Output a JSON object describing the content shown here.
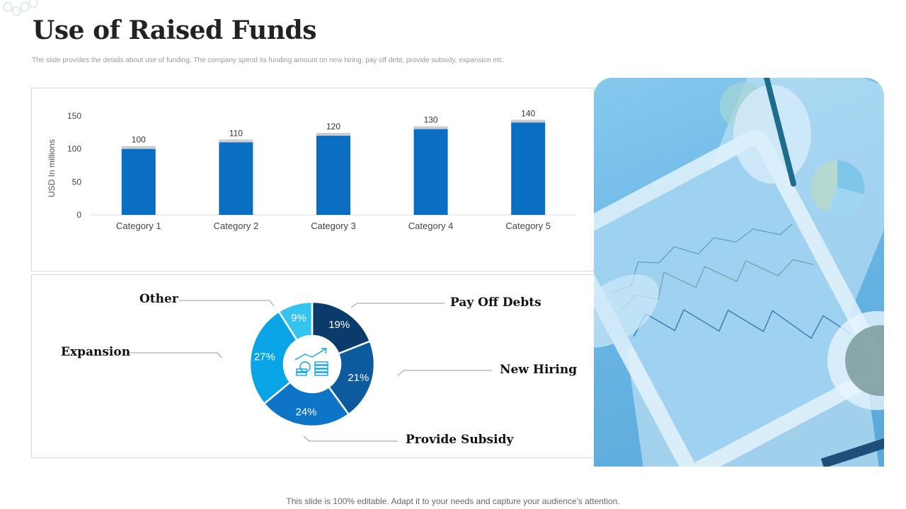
{
  "title": "Use of Raised Funds",
  "subtitle": "The slide provides the details about use of funding. The company spend its funding amount on new hiring, pay off debt, provide subsidy, expansion etc.",
  "footer": "This slide is 100% editable. Adapt it to your needs and capture your audience's attention.",
  "colors": {
    "bar": "#0a6fc2",
    "bar_cap": "#c8ccd2",
    "pie": [
      "#0a3b6b",
      "#0b5b9e",
      "#0d74c8",
      "#0aa5e6",
      "#35c3f0"
    ]
  },
  "chart_data": [
    {
      "type": "bar",
      "categories": [
        "Category 1",
        "Category 2",
        "Category 3",
        "Category 4",
        "Category 5"
      ],
      "values": [
        100,
        110,
        120,
        130,
        140
      ],
      "ylabel": "USD In millions",
      "xlabel": "",
      "ylim": [
        0,
        150
      ],
      "yticks": [
        0,
        50,
        100,
        150
      ],
      "grid": false,
      "data_labels": true
    },
    {
      "type": "pie",
      "donut": true,
      "center_icon": "money-growth-icon",
      "slices": [
        {
          "label": "Pay Off Debts",
          "value": 19,
          "text": "19%"
        },
        {
          "label": "New Hiring",
          "value": 21,
          "text": "21%"
        },
        {
          "label": "Provide Subsidy",
          "value": 24,
          "text": "24%"
        },
        {
          "label": "Expansion",
          "value": 27,
          "text": "27%"
        },
        {
          "label": "Other",
          "value": 9,
          "text": "9%"
        }
      ]
    }
  ],
  "photo": {
    "icon": "tablet-analysis-photo"
  }
}
